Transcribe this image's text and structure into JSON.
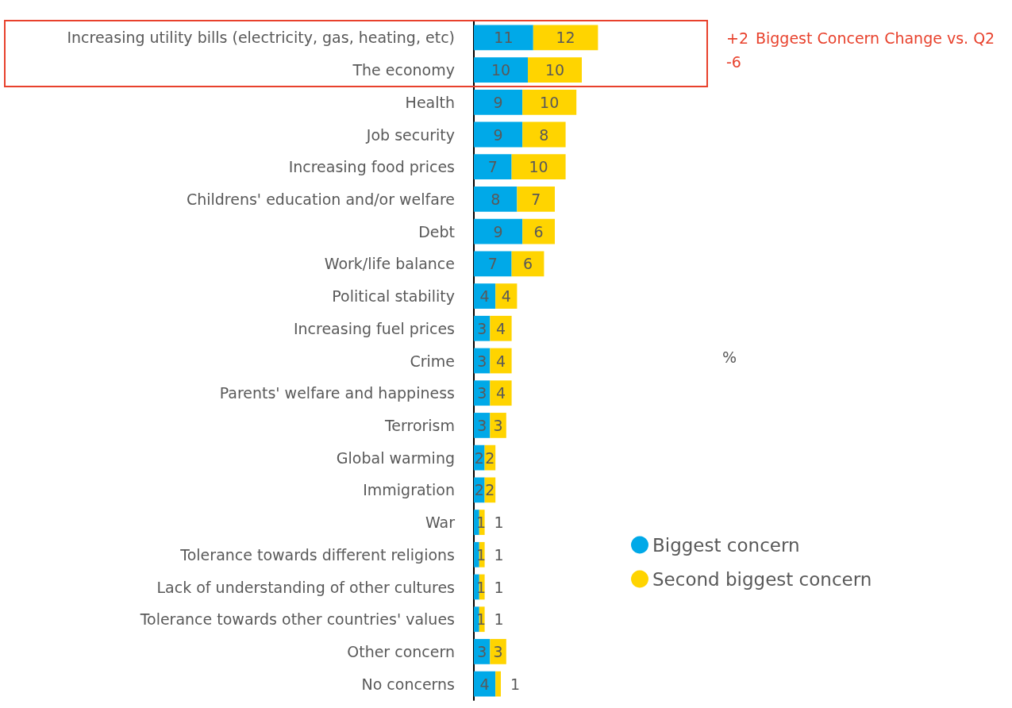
{
  "chart_data": {
    "type": "bar",
    "orientation": "horizontal",
    "stacked": true,
    "data_labels": true,
    "legend": "right",
    "grid": false,
    "categories": [
      "Increasing utility bills (electricity, gas, heating, etc)",
      "The economy",
      "Health",
      "Job security",
      "Increasing food prices",
      "Childrens' education and/or welfare",
      "Debt",
      "Work/life balance",
      "Political stability",
      "Increasing fuel prices",
      "Crime",
      "Parents' welfare and happiness",
      "Terrorism",
      "Global warming",
      "Immigration",
      "War",
      "Tolerance towards different religions",
      "Lack of understanding of other cultures",
      "Tolerance towards other countries' values",
      "Other concern",
      "No concerns"
    ],
    "series": [
      {
        "name": "Biggest concern",
        "color": "#00a9e8",
        "values": [
          11,
          10,
          9,
          9,
          7,
          8,
          9,
          7,
          4,
          3,
          3,
          3,
          3,
          2,
          2,
          1,
          1,
          1,
          1,
          3,
          4
        ]
      },
      {
        "name": "Second biggest concern",
        "color": "#ffd400",
        "values": [
          12,
          10,
          10,
          8,
          10,
          7,
          6,
          6,
          4,
          4,
          4,
          4,
          3,
          2,
          2,
          1,
          1,
          1,
          1,
          3,
          1
        ]
      }
    ],
    "annotations": [
      "+2",
      "Biggest Concern Change vs. Q2",
      "-6",
      "%"
    ]
  }
}
